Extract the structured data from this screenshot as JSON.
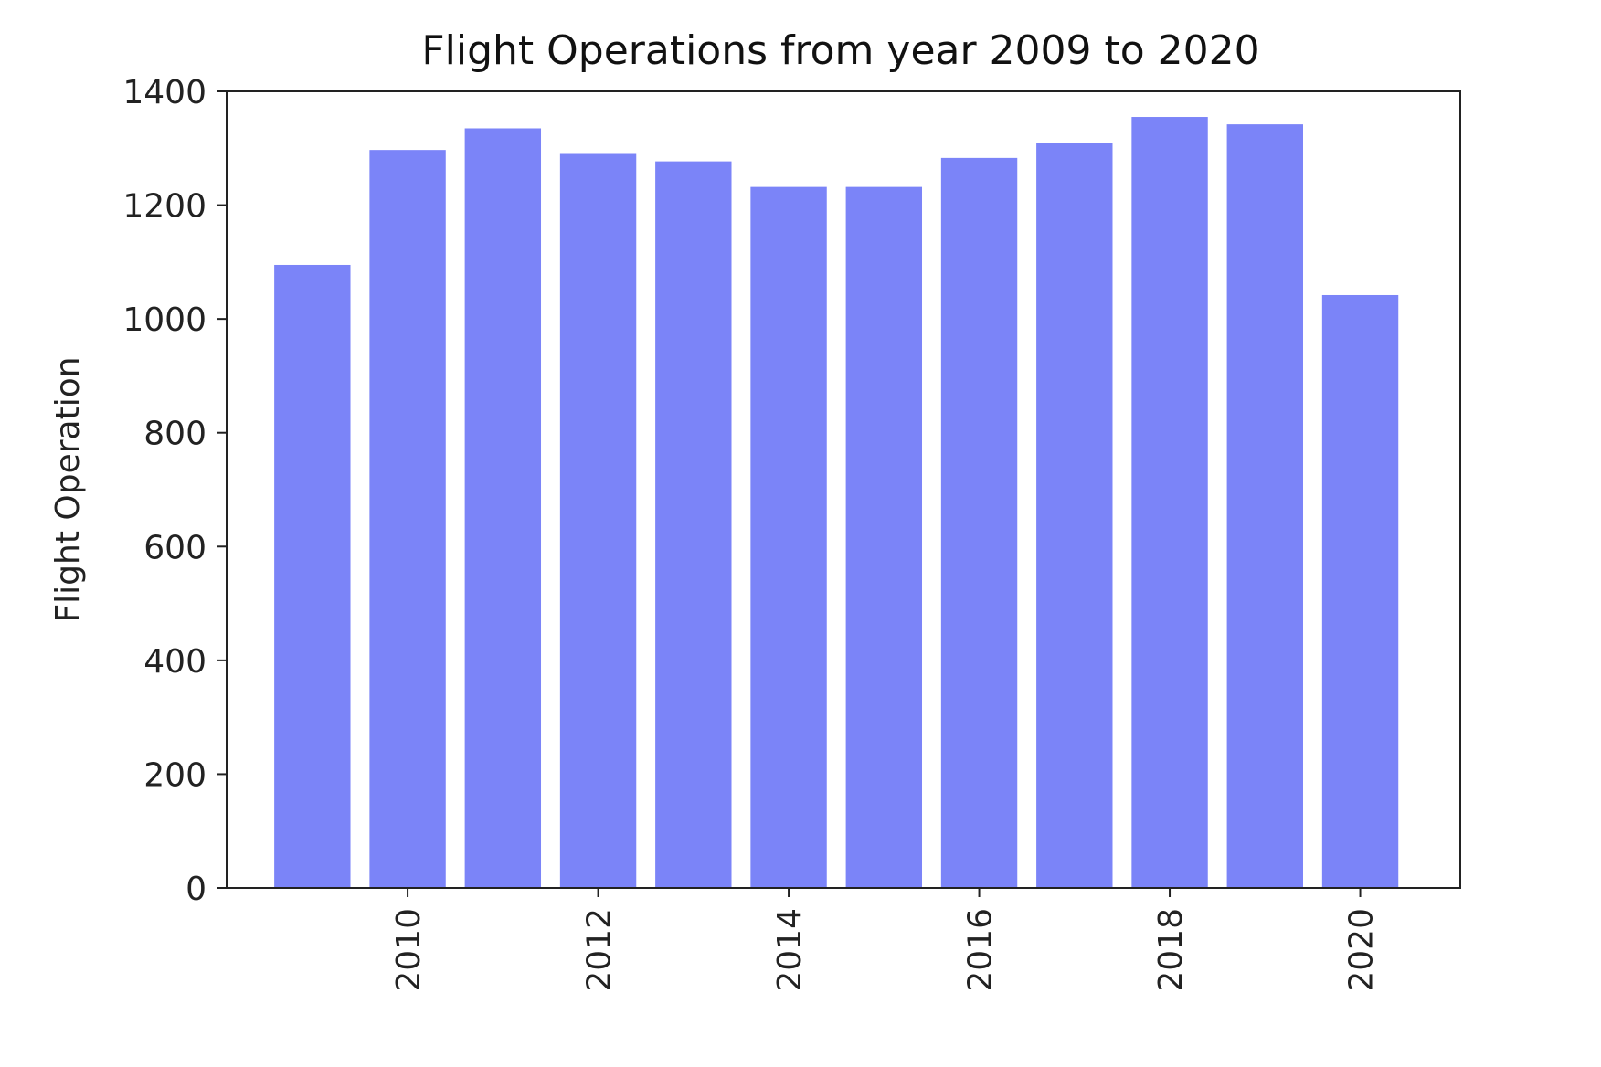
{
  "chart_data": {
    "type": "bar",
    "title": "Flight Operations from year 2009 to 2020",
    "xlabel": "",
    "ylabel": "Flight Operation",
    "x": [
      2009,
      2010,
      2011,
      2012,
      2013,
      2014,
      2015,
      2016,
      2017,
      2018,
      2019,
      2020
    ],
    "values": [
      1095,
      1297,
      1335,
      1290,
      1277,
      1232,
      1232,
      1283,
      1310,
      1355,
      1342,
      1042
    ],
    "ylim": [
      0,
      1400
    ],
    "xlim": [
      2008.1,
      2021.05
    ],
    "yticks": [
      "0",
      "200",
      "400",
      "600",
      "800",
      "1000",
      "1200",
      "1400"
    ],
    "xticks": [
      "2010",
      "2012",
      "2014",
      "2016",
      "2018",
      "2020"
    ],
    "bar_color": "#7b84f8",
    "grid": false,
    "legend": "none"
  }
}
